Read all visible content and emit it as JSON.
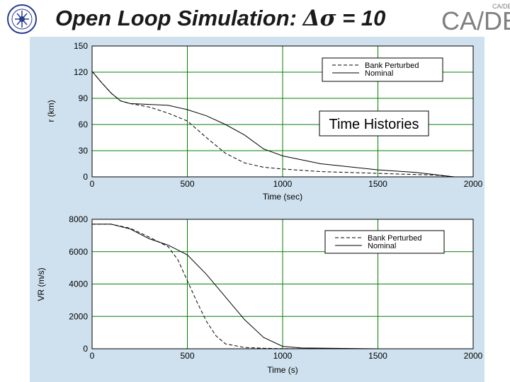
{
  "slide": {
    "title_prefix": "Open Loop Simulation: ",
    "title_symbol": "Δσ",
    "title_suffix": " = 10",
    "logo_text": "CA/DE",
    "logo_small": "CA/DE",
    "annotation": "Time Histories"
  },
  "colors": {
    "panel_bg": "#cfe1ee",
    "plot_bg": "#ffffff",
    "grid": "#008000",
    "line": "#000000",
    "logo_gray": "#7f7f7f"
  },
  "chart_data": [
    {
      "type": "line",
      "xlabel": "Time (sec)",
      "ylabel": "r (km)",
      "xlim": [
        0,
        2000
      ],
      "ylim": [
        0,
        150
      ],
      "xticks": [
        "0",
        "500",
        "1000",
        "1500",
        "2000"
      ],
      "yticks": [
        "0",
        "30",
        "60",
        "90",
        "120",
        "150"
      ],
      "grid": true,
      "legend": "top-right",
      "series": [
        {
          "name": "Bank Perturbed",
          "style": "dashed",
          "x": [
            0,
            50,
            100,
            150,
            200,
            300,
            400,
            500,
            600,
            700,
            800,
            900,
            1000,
            1200,
            1500,
            1800,
            1900
          ],
          "y": [
            121,
            108,
            96,
            87,
            84,
            80,
            73,
            64,
            45,
            27,
            16,
            11,
            9,
            6,
            4,
            2,
            0
          ]
        },
        {
          "name": "Nominal",
          "style": "solid",
          "x": [
            0,
            50,
            100,
            150,
            200,
            300,
            400,
            500,
            600,
            700,
            800,
            900,
            1000,
            1200,
            1500,
            1700,
            1900
          ],
          "y": [
            121,
            108,
            96,
            87,
            84,
            83,
            82,
            77,
            70,
            60,
            48,
            32,
            24,
            15,
            8,
            5,
            0
          ]
        }
      ]
    },
    {
      "type": "line",
      "xlabel": "Time (s)",
      "ylabel": "VR (m/s)",
      "xlim": [
        0,
        2000
      ],
      "ylim": [
        0,
        8000
      ],
      "xticks": [
        "0",
        "500",
        "1000",
        "1500",
        "2000"
      ],
      "yticks": [
        "0",
        "2000",
        "4000",
        "6000",
        "8000"
      ],
      "grid": true,
      "legend": "top-right",
      "series": [
        {
          "name": "Bank Perturbed",
          "style": "dashed",
          "x": [
            0,
            100,
            200,
            300,
            400,
            450,
            500,
            550,
            600,
            650,
            700,
            800,
            900,
            1000,
            1500,
            2000
          ],
          "y": [
            7700,
            7700,
            7450,
            6900,
            6300,
            5500,
            4200,
            2900,
            1700,
            800,
            300,
            80,
            30,
            10,
            0,
            0
          ]
        },
        {
          "name": "Nominal",
          "style": "solid",
          "x": [
            0,
            100,
            200,
            300,
            400,
            500,
            600,
            700,
            800,
            900,
            1000,
            1100,
            1500,
            2000
          ],
          "y": [
            7700,
            7700,
            7400,
            6800,
            6400,
            5800,
            4600,
            3200,
            1800,
            700,
            150,
            50,
            0,
            0
          ]
        }
      ]
    }
  ]
}
